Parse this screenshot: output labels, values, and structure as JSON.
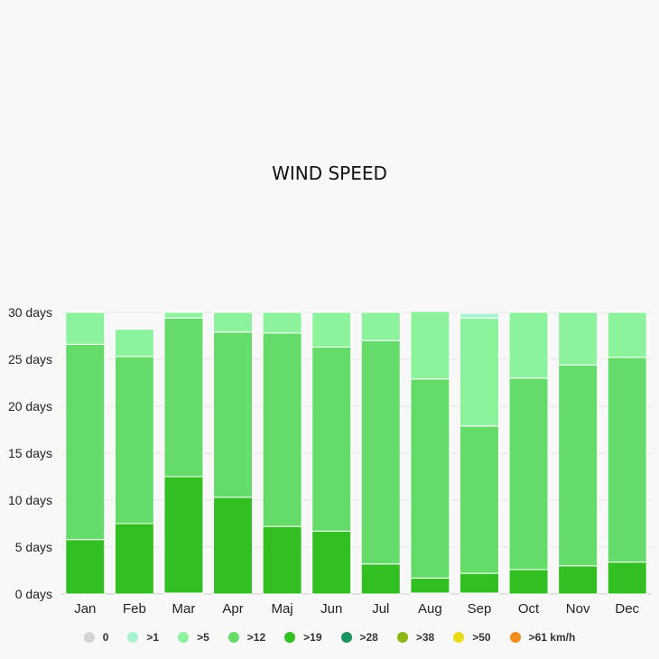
{
  "chart_data": {
    "type": "bar",
    "stacked": true,
    "title": "WIND SPEED",
    "categories": [
      "Jan",
      "Feb",
      "Mar",
      "Apr",
      "Maj",
      "Jun",
      "Jul",
      "Aug",
      "Sep",
      "Oct",
      "Nov",
      "Dec"
    ],
    "y_ticks": [
      "0 days",
      "5 days",
      "10 days",
      "15 days",
      "20 days",
      "25 days",
      "30 days"
    ],
    "ylim": [
      0,
      30
    ],
    "grid": true,
    "legend_position": "bottom",
    "series": [
      {
        "name": "0",
        "color": "#d4d4d4",
        "values": [
          0,
          0,
          0,
          0,
          0,
          0,
          0,
          0,
          0,
          0,
          0,
          0
        ]
      },
      {
        "name": ">1",
        "color": "#a7f2cf",
        "values": [
          0,
          0,
          0,
          0,
          0,
          0,
          0,
          0,
          0.5,
          0,
          0,
          0
        ]
      },
      {
        "name": ">5",
        "color": "#8cf29c",
        "values": [
          3.4,
          2.9,
          0.6,
          2.1,
          2.2,
          3.7,
          3,
          7.2,
          11.5,
          7,
          5.6,
          4.8
        ]
      },
      {
        "name": ">12",
        "color": "#65dc6a",
        "values": [
          20.8,
          17.8,
          16.9,
          17.6,
          20.6,
          19.6,
          23.8,
          21.2,
          15.7,
          20.4,
          21.4,
          21.8
        ]
      },
      {
        "name": ">19",
        "color": "#32bf21",
        "values": [
          5.8,
          7.5,
          12.4,
          10.3,
          7.2,
          6.7,
          3.2,
          1.6,
          2.1,
          2.6,
          3,
          3.4
        ]
      },
      {
        "name": ">28",
        "color": "#1a9460",
        "values": [
          0,
          0,
          0.1,
          0,
          0,
          0,
          0,
          0.1,
          0.1,
          0,
          0,
          0
        ]
      },
      {
        "name": ">38",
        "color": "#8db614",
        "values": [
          0,
          0,
          0,
          0,
          0,
          0,
          0,
          0,
          0,
          0,
          0,
          0
        ]
      },
      {
        "name": ">50",
        "color": "#eadc19",
        "values": [
          0,
          0,
          0,
          0,
          0,
          0,
          0,
          0,
          0,
          0,
          0,
          0
        ]
      },
      {
        "name": ">61 km/h",
        "color": "#f28c1c",
        "values": [
          0,
          0,
          0,
          0,
          0,
          0,
          0,
          0,
          0,
          0,
          0,
          0
        ]
      }
    ]
  }
}
